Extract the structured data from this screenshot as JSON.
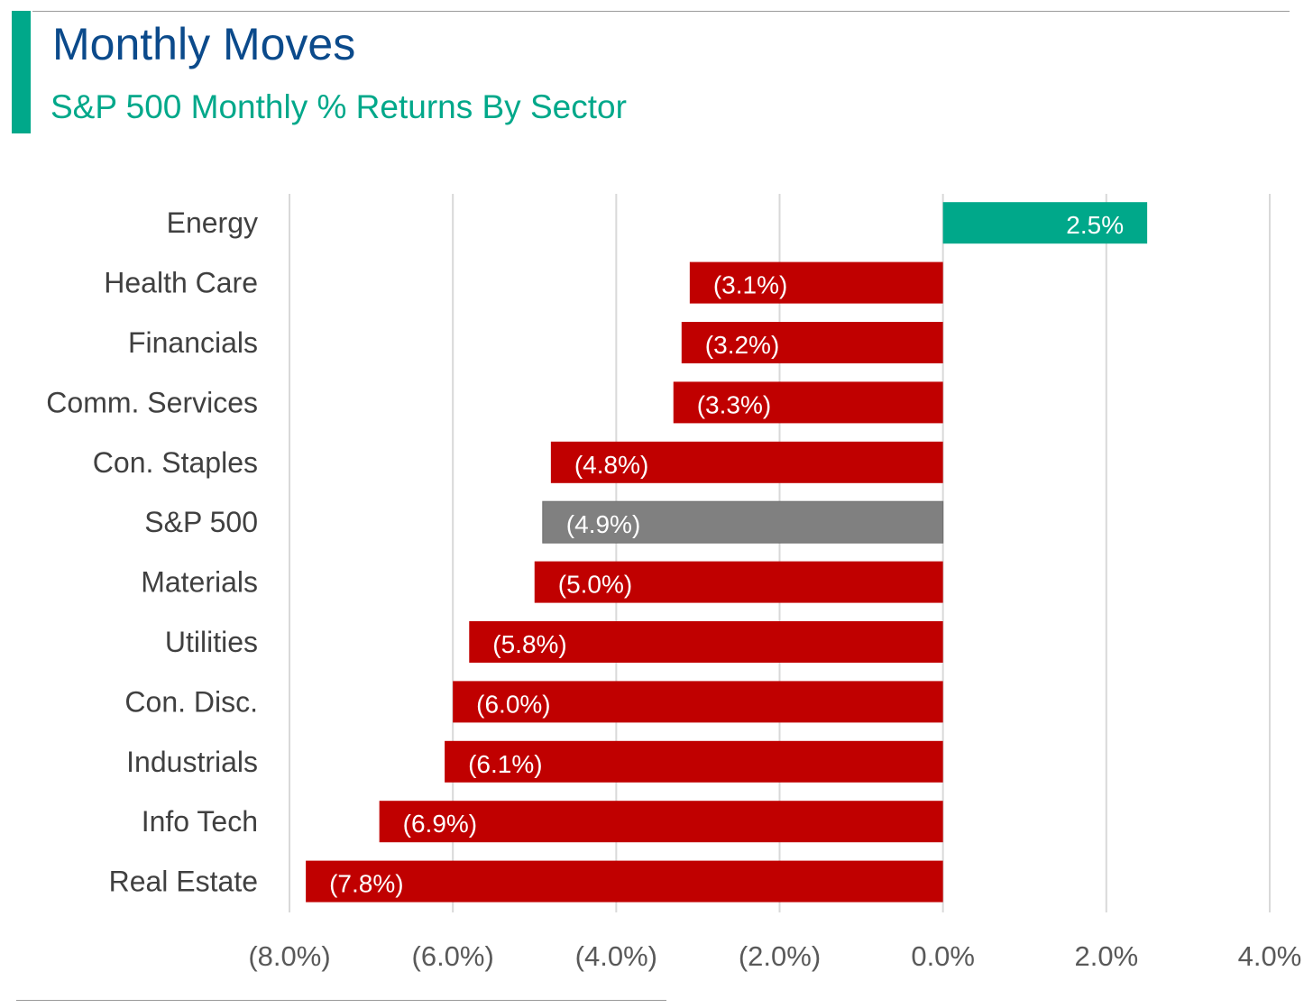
{
  "header": {
    "title": "Monthly Moves",
    "subtitle": "S&P 500 Monthly % Returns By Sector"
  },
  "colors": {
    "title": "#0b4a8b",
    "accent": "#00a88a",
    "positive": "#00a88a",
    "negative": "#c00000",
    "index": "#808080",
    "grid": "#d9d9d9",
    "text": "#404040",
    "axis_text": "#595959"
  },
  "chart_data": {
    "type": "bar",
    "orientation": "horizontal",
    "categories": [
      "Energy",
      "Health Care",
      "Financials",
      "Comm. Services",
      "Con. Staples",
      "S&P 500",
      "Materials",
      "Utilities",
      "Con. Disc.",
      "Industrials",
      "Info Tech",
      "Real Estate"
    ],
    "values": [
      2.5,
      -3.1,
      -3.2,
      -3.3,
      -4.8,
      -4.9,
      -5.0,
      -5.8,
      -6.0,
      -6.1,
      -6.9,
      -7.8
    ],
    "data_labels": [
      "2.5%",
      "(3.1%)",
      "(3.2%)",
      "(3.3%)",
      "(4.8%)",
      "(4.9%)",
      "(5.0%)",
      "(5.8%)",
      "(6.0%)",
      "(6.1%)",
      "(6.9%)",
      "(7.8%)"
    ],
    "highlight_category": "S&P 500",
    "xlim": [
      -8,
      4
    ],
    "xticks": [
      -8,
      -6,
      -4,
      -2,
      0,
      2,
      4
    ],
    "xtick_labels": [
      "(8.0%)",
      "(6.0%)",
      "(4.0%)",
      "(2.0%)",
      "0.0%",
      "2.0%",
      "4.0%"
    ],
    "grid": "vertical",
    "legend": "none"
  }
}
